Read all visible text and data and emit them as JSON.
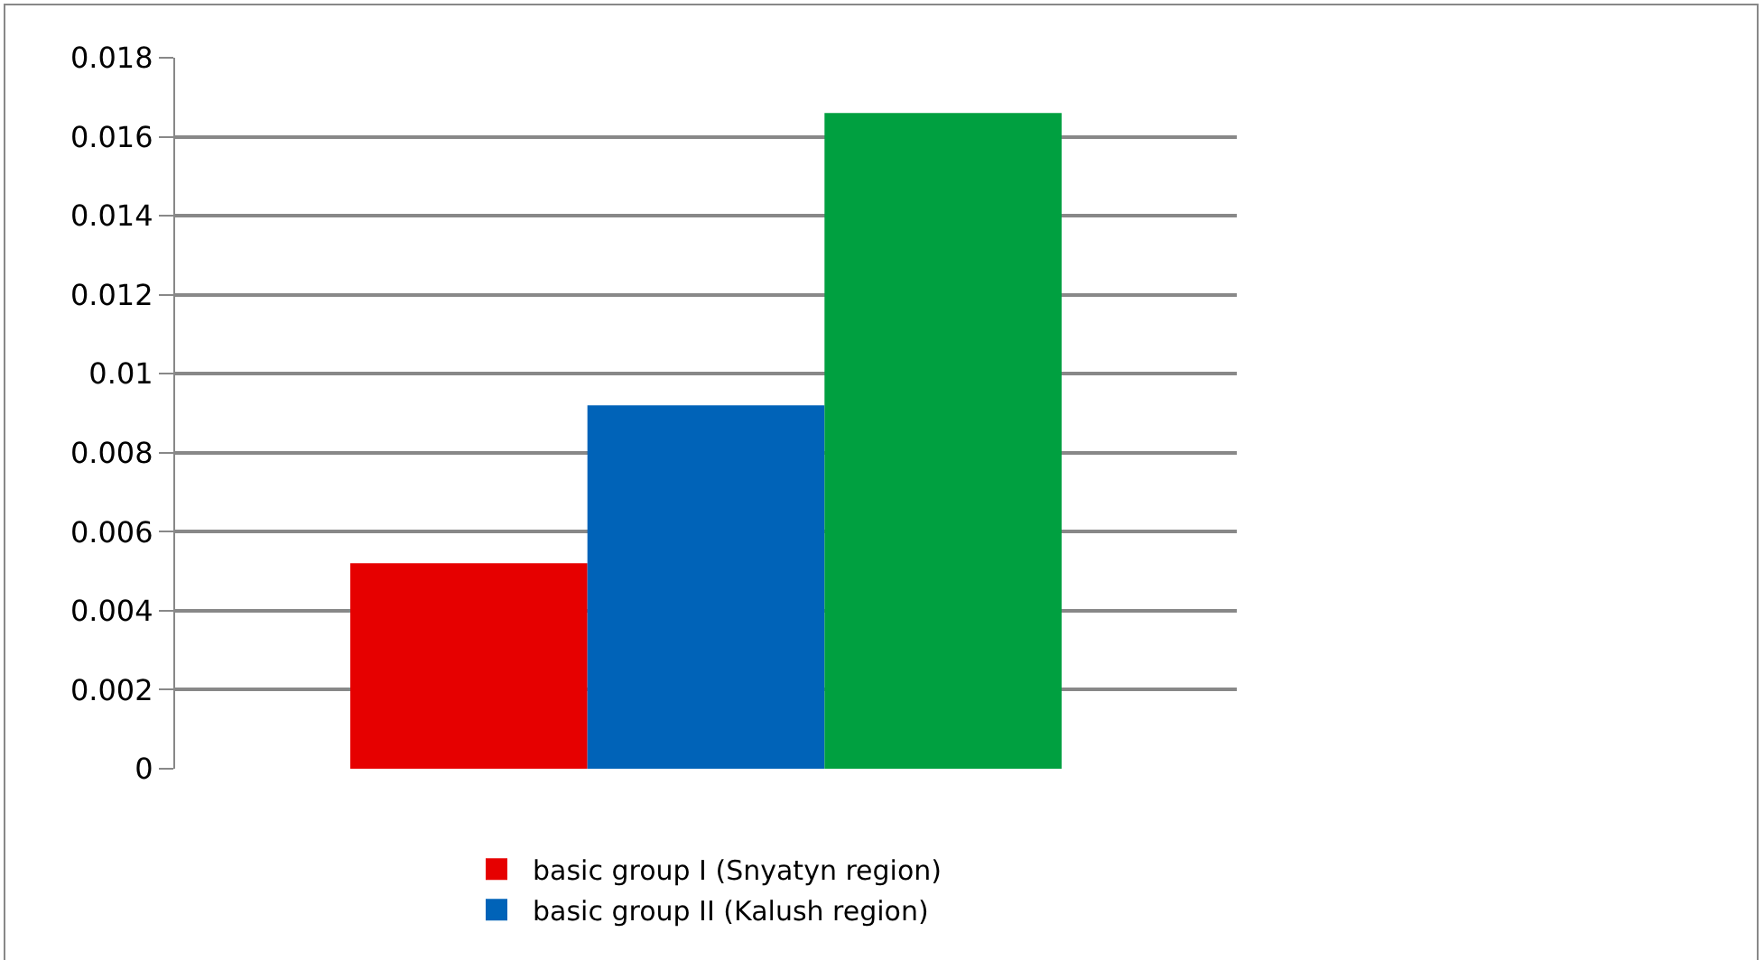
{
  "chart_data": {
    "type": "bar",
    "categories": [
      null
    ],
    "series": [
      {
        "name": "basic group I (Snyatyn region)",
        "color": "#e60000",
        "values": [
          0.0052
        ]
      },
      {
        "name": "basic group II (Kalush region)",
        "color": "#0063b8",
        "values": [
          0.0092
        ]
      },
      {
        "color": "#00a040",
        "values": [
          0.0166
        ]
      }
    ],
    "ylim": [
      0,
      0.018
    ],
    "yticks": [
      0,
      0.002,
      0.004,
      0.006,
      0.008,
      0.01,
      0.012,
      0.014,
      0.016,
      0.018
    ],
    "grid": "y",
    "legend": "bottom"
  }
}
